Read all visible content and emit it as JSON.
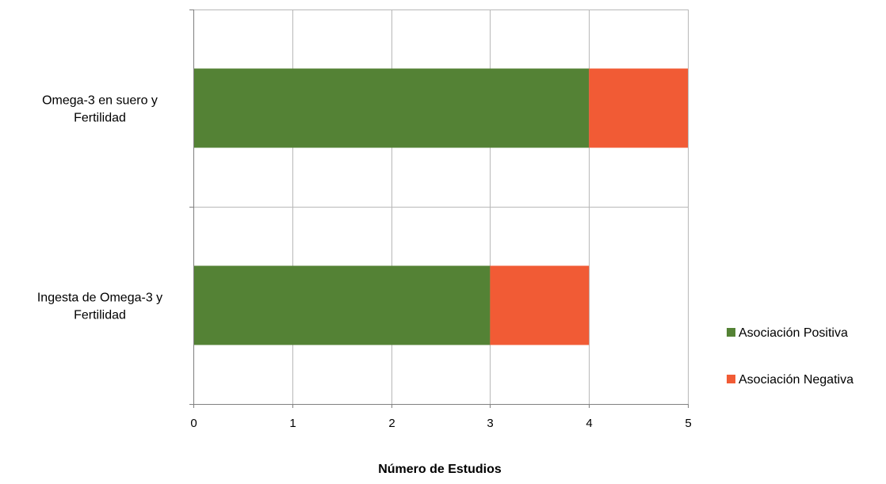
{
  "chart_data": {
    "type": "bar",
    "orientation": "horizontal",
    "stacked": true,
    "categories": [
      "Omega-3 en suero y Fertilidad",
      "Ingesta de Omega-3 y Fertilidad"
    ],
    "category_lines": [
      [
        "Omega-3 en suero y",
        "Fertilidad"
      ],
      [
        "Ingesta de Omega-3 y",
        "Fertilidad"
      ]
    ],
    "series": [
      {
        "name": "Asociación Positiva",
        "values": [
          4,
          3
        ],
        "color": "#548235"
      },
      {
        "name": "Asociación Negativa",
        "values": [
          1,
          1
        ],
        "color": "#f15b35"
      }
    ],
    "xlabel": "Número de Estudios",
    "ylabel": "",
    "title": "",
    "xlim": [
      0,
      5
    ],
    "xticks": [
      0,
      1,
      2,
      3,
      4,
      5
    ],
    "grid": true,
    "legend_position": "right"
  }
}
